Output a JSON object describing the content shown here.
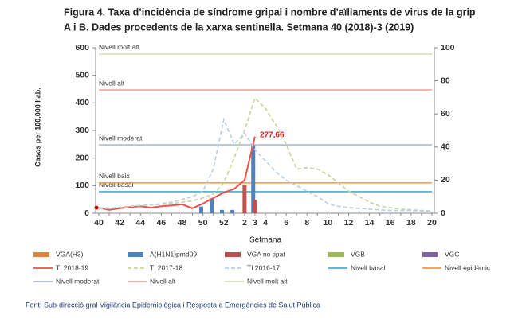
{
  "chart_data": {
    "type": "combo",
    "title": "Figura 4. Taxa d’incidència de síndrome gripal i nombre d’aïllaments de virus de la grip",
    "subtitle": "A i B. Dades procedents de la xarxa sentinella.  Setmana 40 (2018)-3 (2019)",
    "xlabel": "Setmana",
    "ylabel": "Casos per 100,000 hab.",
    "source": "Font:  Sub-direcció gral Vigilància  Epidemiològica  i Resposta a Emergències de Salut Pública",
    "categories": [
      "40",
      null,
      "42",
      null,
      "44",
      null,
      "46",
      null,
      "48",
      null,
      "50",
      null,
      "52",
      null,
      "2",
      "3",
      "4",
      null,
      "6",
      null,
      "8",
      null,
      "10",
      null,
      "12",
      null,
      "14",
      null,
      "16",
      null,
      "18",
      null,
      "20"
    ],
    "ylim": [
      0,
      600
    ],
    "yticks": [
      0,
      100,
      200,
      300,
      400,
      500,
      600
    ],
    "y2lim": [
      0,
      100
    ],
    "y2ticks": [
      0,
      20,
      40,
      60,
      80,
      100
    ],
    "series": [
      {
        "name": "VGA(H3)",
        "kind": "bar",
        "axis": "y2",
        "color": "#e0823c",
        "values": [
          null,
          null,
          null,
          null,
          null,
          null,
          null,
          null,
          null,
          null,
          null,
          null,
          null,
          null,
          null,
          null,
          null,
          null,
          null,
          null,
          null,
          null,
          null,
          null,
          null,
          null,
          null,
          null,
          null,
          null,
          null,
          null,
          null
        ]
      },
      {
        "name": "A(H1N1)pmd09",
        "kind": "bar",
        "axis": "y2",
        "color": "#4f81bd",
        "values": [
          null,
          null,
          null,
          null,
          null,
          null,
          null,
          null,
          null,
          null,
          4,
          9,
          2,
          2,
          null,
          41,
          null,
          null,
          null,
          null,
          null,
          null,
          null,
          null,
          null,
          null,
          null,
          null,
          null,
          null,
          null,
          null,
          null
        ]
      },
      {
        "name": "VGA no tipat",
        "kind": "bar",
        "axis": "y2",
        "color": "#c0504d",
        "values": [
          null,
          null,
          null,
          null,
          null,
          null,
          null,
          null,
          null,
          null,
          null,
          null,
          null,
          null,
          17,
          8,
          null,
          null,
          null,
          null,
          null,
          null,
          null,
          null,
          null,
          null,
          null,
          null,
          null,
          null,
          null,
          null,
          null
        ]
      },
      {
        "name": "VGB",
        "kind": "bar",
        "axis": "y2",
        "color": "#9bbb59",
        "values": [
          null,
          null,
          null,
          null,
          null,
          null,
          null,
          null,
          null,
          null,
          null,
          null,
          null,
          null,
          null,
          null,
          null,
          null,
          null,
          null,
          null,
          null,
          null,
          null,
          null,
          null,
          null,
          null,
          null,
          null,
          null,
          null,
          null
        ]
      },
      {
        "name": "VGC",
        "kind": "bar",
        "axis": "y2",
        "color": "#8064a2",
        "values": [
          null,
          null,
          null,
          null,
          null,
          null,
          null,
          null,
          null,
          null,
          null,
          null,
          null,
          null,
          null,
          null,
          null,
          null,
          null,
          null,
          null,
          null,
          null,
          null,
          null,
          null,
          null,
          null,
          null,
          null,
          null,
          null,
          null
        ]
      },
      {
        "name": "TI 2018-19",
        "kind": "line",
        "color": "#f0504a",
        "dash": false,
        "values": [
          20,
          12,
          18,
          22,
          25,
          20,
          25,
          28,
          32,
          18,
          35,
          55,
          75,
          88,
          120,
          277.66,
          null,
          null,
          null,
          null,
          null,
          null,
          null,
          null,
          null,
          null,
          null,
          null,
          null,
          null,
          null,
          null,
          null
        ],
        "value_labels": [
          null,
          null,
          null,
          null,
          null,
          null,
          null,
          null,
          null,
          null,
          null,
          null,
          null,
          null,
          null,
          "277,66",
          null,
          null,
          null,
          null,
          null,
          null,
          null,
          null,
          null,
          null,
          null,
          null,
          null,
          null,
          null,
          null,
          null
        ]
      },
      {
        "name": "TI 2017-18",
        "kind": "line",
        "color": "#c3d69b",
        "dash": true,
        "values": [
          15,
          18,
          20,
          25,
          28,
          30,
          32,
          35,
          40,
          45,
          55,
          70,
          110,
          200,
          300,
          418,
          380,
          320,
          250,
          160,
          165,
          160,
          140,
          110,
          80,
          60,
          40,
          25,
          20,
          15,
          12,
          10,
          8
        ]
      },
      {
        "name": "TI 2016-17",
        "kind": "line",
        "color": "#b9cde5",
        "dash": true,
        "values": [
          20,
          18,
          22,
          25,
          28,
          30,
          35,
          40,
          50,
          60,
          80,
          160,
          340,
          250,
          290,
          230,
          190,
          150,
          120,
          100,
          80,
          60,
          35,
          25,
          20,
          18,
          15,
          12,
          10,
          10,
          10,
          8,
          8
        ]
      }
    ],
    "reference_lines": [
      {
        "name": "Nivell basal",
        "label": "Nivell basal",
        "value": 78,
        "color": "#4bacc6"
      },
      {
        "name": "Nivell epidèmic",
        "label": "Nivell baix",
        "value": 110,
        "color": "#f79646"
      },
      {
        "name": "Nivell moderat",
        "label": "Nivell moderat",
        "value": 248,
        "color": "#a9bbdc"
      },
      {
        "name": "Nivell alt",
        "label": "Nivell alt",
        "value": 447,
        "color": "#f2a49c"
      },
      {
        "name": "Nivell molt alt",
        "label": "Nivell molt alt",
        "value": 577,
        "color": "#d5e2b8"
      }
    ]
  }
}
